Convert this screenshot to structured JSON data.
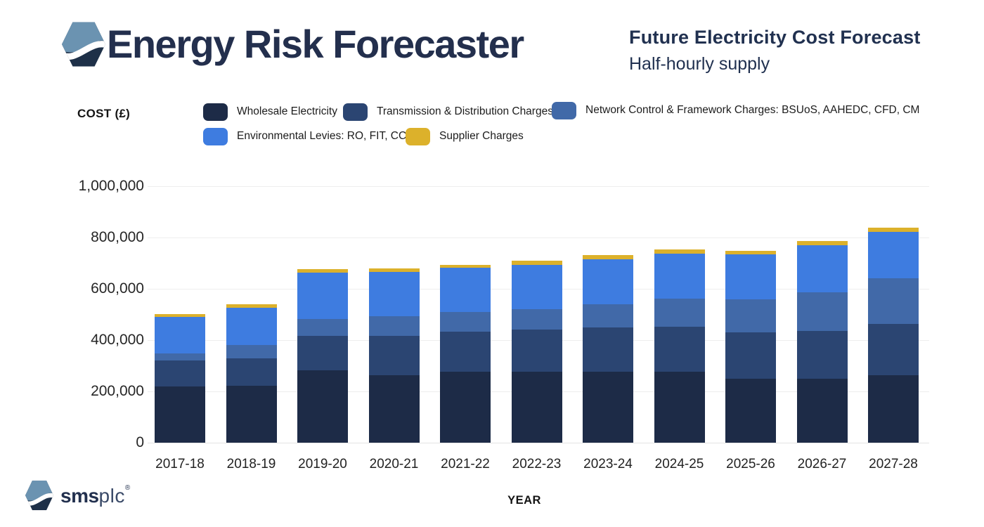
{
  "header": {
    "app_title": "Energy Risk Forecaster",
    "chart_title": "Future Electricity Cost Forecast",
    "chart_subtitle": "Half-hourly supply"
  },
  "axis": {
    "y_title": "COST (£)",
    "x_title": "YEAR"
  },
  "footer_logo": {
    "text_bold": "sms",
    "text_light": "plc",
    "reg_mark": "®"
  },
  "colors": {
    "brand_navy": "#232f4d",
    "logo_steel_blue": "#6b93b1",
    "logo_dark_navy": "#1e3048",
    "gridline": "#eeeeee",
    "wholesale": "#1d2b47",
    "transmission": "#2b4572",
    "network": "#4169a8",
    "environmental": "#3e7ce0",
    "supplier": "#dcb12b"
  },
  "chart_data": {
    "type": "bar",
    "stacked": true,
    "title": "Future Electricity Cost Forecast",
    "subtitle": "Half-hourly supply",
    "xlabel": "YEAR",
    "ylabel": "COST (£)",
    "ylim": [
      0,
      1000000
    ],
    "grid": true,
    "legend_position": "top",
    "y_ticks": [
      {
        "value": 0,
        "label": "0"
      },
      {
        "value": 200000,
        "label": "200,000"
      },
      {
        "value": 400000,
        "label": "400,000"
      },
      {
        "value": 600000,
        "label": "600,000"
      },
      {
        "value": 800000,
        "label": "800,000"
      },
      {
        "value": 1000000,
        "label": "1,000,000"
      }
    ],
    "categories": [
      "2017-18",
      "2018-19",
      "2019-20",
      "2020-21",
      "2021-22",
      "2022-23",
      "2023-24",
      "2024-25",
      "2025-26",
      "2026-27",
      "2027-28"
    ],
    "series": [
      {
        "name": "Wholesale Electricity",
        "color": "#1d2b47",
        "values": [
          220000,
          222000,
          283000,
          264000,
          276000,
          276000,
          276000,
          276000,
          250000,
          249000,
          264000
        ]
      },
      {
        "name": "Transmission & Distribution Charges",
        "color": "#2b4572",
        "values": [
          100000,
          107000,
          134000,
          153000,
          158000,
          165000,
          172000,
          175000,
          181000,
          186000,
          199000
        ]
      },
      {
        "name": "Network Control & Framework Charges: BSUoS, AAHEDC, CFD, CM",
        "color": "#4169a8",
        "values": [
          28000,
          53000,
          64000,
          76000,
          76000,
          80000,
          93000,
          111000,
          128000,
          152000,
          177000
        ]
      },
      {
        "name": "Environmental Levies: RO, FIT, CCL",
        "color": "#3e7ce0",
        "values": [
          142000,
          144000,
          182000,
          172000,
          171000,
          173000,
          175000,
          176000,
          175000,
          183000,
          181000
        ]
      },
      {
        "name": "Supplier Charges",
        "color": "#dcb12b",
        "values": [
          12000,
          13000,
          14000,
          14000,
          12000,
          15000,
          16000,
          16000,
          14000,
          16000,
          16000
        ]
      }
    ]
  }
}
